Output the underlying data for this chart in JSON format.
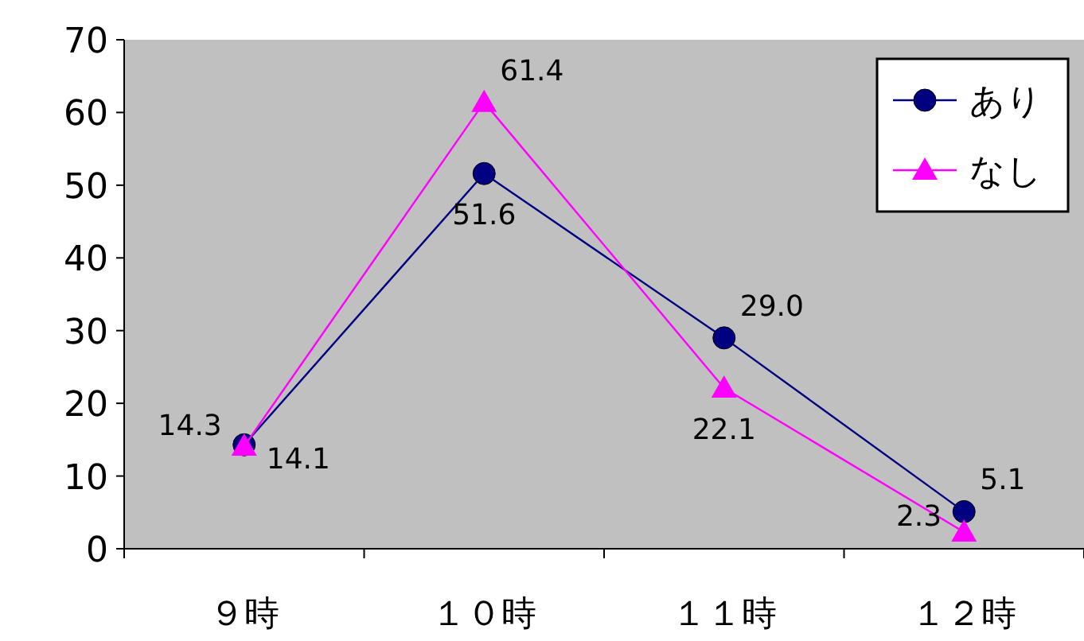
{
  "chart_data": {
    "type": "line",
    "categories": [
      "９時",
      "１０時",
      "１１時",
      "１２時"
    ],
    "series": [
      {
        "name": "あり",
        "color": "#000080",
        "marker": "circle",
        "values": [
          14.3,
          51.6,
          29.0,
          5.1
        ],
        "value_labels": [
          "14.3",
          "51.6",
          "29.0",
          "5.1"
        ]
      },
      {
        "name": "なし",
        "color": "#ff00ff",
        "marker": "triangle",
        "values": [
          14.1,
          61.4,
          22.1,
          2.3
        ],
        "value_labels": [
          "14.1",
          "61.4",
          "22.1",
          "2.3"
        ]
      }
    ],
    "ylim": [
      0,
      70
    ],
    "yticks": [
      0,
      10,
      20,
      30,
      40,
      50,
      60,
      70
    ],
    "legend": "top right",
    "grid": false
  }
}
